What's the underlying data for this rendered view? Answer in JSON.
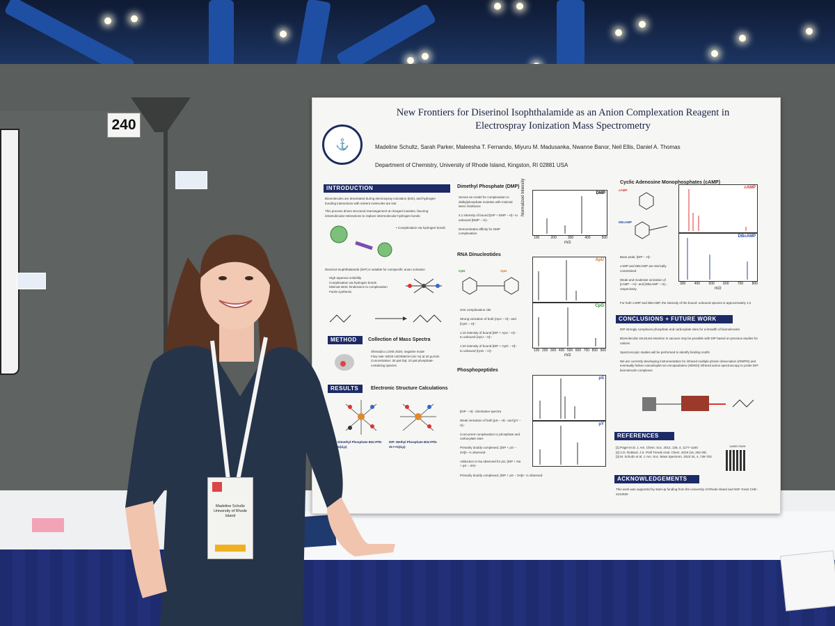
{
  "scene": {
    "description_colors": {
      "wall": "#5a5e5c",
      "tablecloth": "#1e2b6e",
      "ceiling_beams": "#1f4fa3",
      "poster_accent": "#1c2a66"
    }
  },
  "booth": {
    "number": "240"
  },
  "poster": {
    "title_line1": "New Frontiers for Diserinol Isophthalamide as an Anion Complexation Reagent in",
    "title_line2": "Electrospray Ionization Mass Spectrometry",
    "authors": "Madeline Schultz, Sarah Parker, Maleesha T. Fernando, Miyuru M. Madusanka, Nwanne Banor, Neil Ellis, Daniel A. Thomas",
    "affiliation": "Department of Chemistry, University of Rhode Island, Kingston, RI 02881 USA",
    "sections": {
      "introduction": "Introduction",
      "method": "Method",
      "results": "Results",
      "conclusions": "Conclusions + Future Work",
      "references": "References",
      "acknowledgements": "Acknowledgements"
    },
    "subheads": {
      "dmp": "Dimethyl Phosphate (DMP)",
      "rna": "RNA Dinucleotides",
      "phospho": "Phosphopeptides",
      "camp": "Cyclic Adenosine Monophosphates (cAMP)",
      "collection": "Collection of Mass Spectra",
      "electronic": "Electronic Structure Calculations"
    },
    "intro_text": "Biomolecules are desolvated during electrospray ionization (ESI), and hydrogen bonding interactions with solvent molecules are lost",
    "intro_text2": "This process drives structural rearrangement at charged moieties, favoring intramolecular interactions to replace intermolecular hydrogen bonds",
    "dip_text": "Diserinol Isophthalamide (DIP) is suitable for nonspecific anion solvation",
    "dip_points": [
      "High aqueous solubility",
      "Complexation via hydrogen bonds",
      "Minimal steric hinderance to complexation",
      "Facile synthesis"
    ],
    "method_points": [
      "Shimadzu LCMS 2020, negative mode",
      "Flow rate: 80/20 H2O/MeOH (v/v %) at 20 µL/min",
      "Concentration: 30 µM Dip; 10 µM phosphate-containing species"
    ],
    "results_labels": [
      "DIP: Dimethyl Phosphate B3LYP/6-31++G(d,p)",
      "DIP: Methyl Phosphate B3LYP/6-31++G(d,p)"
    ],
    "dmp_points": [
      "Serves as model for complexation to dialkylphosphate moieties with minimal steric hindrance",
      "4:1 intensity of bound [DIP + DMP − H]− to unbound [DMP − H]−",
      "Demonstrates affinity for DMP complexation"
    ],
    "rna_points": [
      "One complexation site",
      "Strong ionization of both [ApU − H]− and [CpG − H]−",
      "1:10 intensity of bound [DIP + ApU − H]− to unbound [ApU − H]−",
      "1:20 intensity of bound [DIP + CpG − H]− to unbound [CpG − H]−"
    ],
    "phospho_points": [
      "[DIP − H]− dominates spectra",
      "Weak ionization of both [pS − H]− and [pY − H]−",
      "Concurrent complexation to phosphate and carboxylate sites",
      "Primarily doubly complexed, [DIP + pS − 2H]2− is observed",
      "Adduction to Na observed for pS, [DIP + Na + pS − 2H]−"
    ],
    "camp_points": [
      "Base peak: [DIP − H]−",
      "cAMP and DBcAMP are sterically constrained",
      "Weak and moderate ionization of [cAMP − H]− and [DBcAMP − H]−, respectively",
      "For both cAMP and DBcAMP, the intensity of the bound: unbound species is approximately 1:2"
    ],
    "conclusion_points": [
      "DIP strongly complexes phosphate and carboxylate sites for a breadth of biomolecules",
      "Biomolecular structural retention in vacuum may be possible with DIP based on previous studies for cations",
      "Spectroscopic studies will be performed to identify binding motifs",
      "We are currently developing instrumentation for infrared multiple photon dissociation (IRMPD) and eventually helium nanodroplet ion encapsulation (HENDI) infrared action spectroscopy to probe DIP: biomolecule complexes"
    ],
    "references": [
      "[1] Pagel et al. J. Am. Chem. Soc. 2012, 135, 4, 1177–1180",
      "[2] A.D. Rutland, J.S. Prell Trends Anal. Chem. 2019 (16, 282-29)",
      "[3] M. Schultz et al. J. Am. Soc. Mass Spectrom. 2023 34, 4, 745-753"
    ],
    "learn_more": "Learn more about DIP!",
    "acknowledgement": "This work was supported by start-up funding from the University of Rhode Island and NSF Grant CHE-2212926",
    "plot_tags": [
      "DMP",
      "ApU",
      "CpG",
      "pS",
      "pY",
      "cAMP",
      "DBcAMP"
    ],
    "axis_x": "m/z",
    "axis_y": "Normalized Intensity",
    "ticks_dmp": [
      "100",
      "200",
      "300",
      "400",
      "500"
    ],
    "ticks_rna": [
      "100",
      "200",
      "300",
      "400",
      "500",
      "600",
      "700",
      "800",
      "900"
    ],
    "ticks_camp": [
      "300",
      "400",
      "500",
      "600",
      "700",
      "800"
    ]
  },
  "badge": {
    "name": "Madeline Schultz",
    "org": "University of Rhode Island"
  }
}
